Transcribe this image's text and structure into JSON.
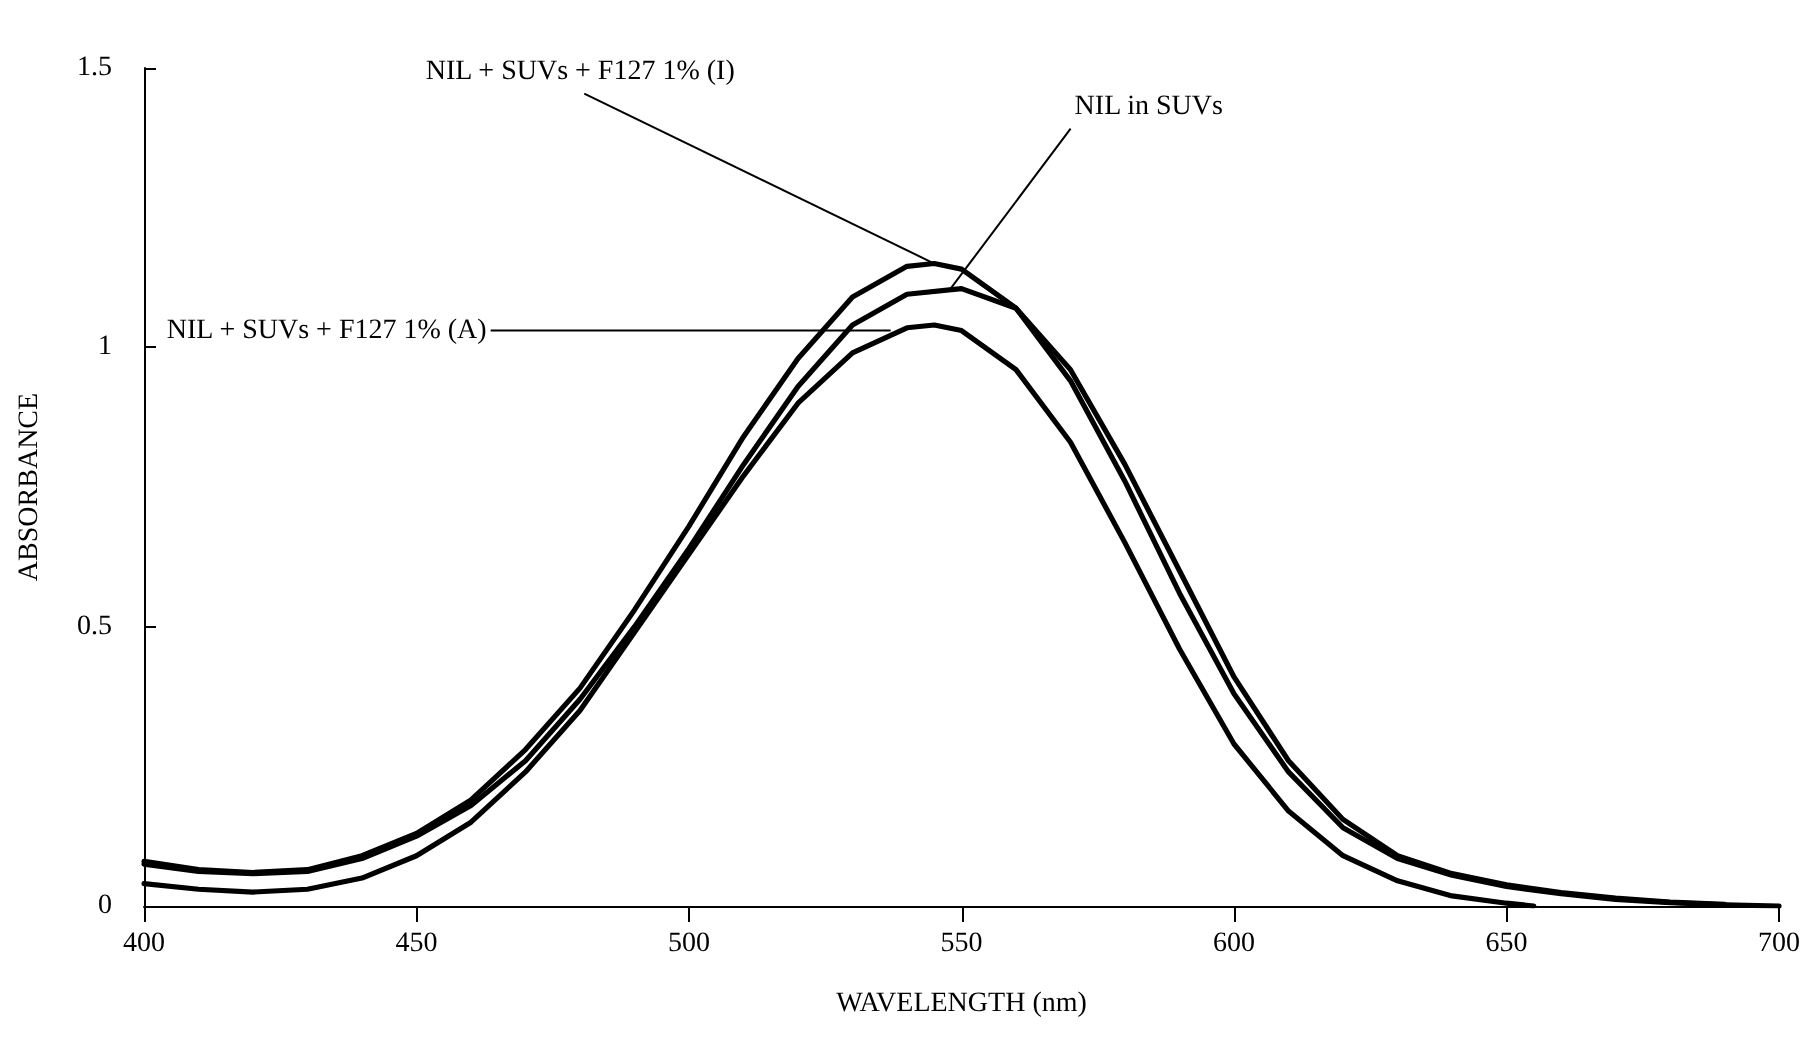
{
  "chart_data": {
    "type": "line",
    "xlabel": "WAVELENGTH (nm)",
    "ylabel": "ABSORBANCE",
    "xlim": [
      400,
      700
    ],
    "xticks": [
      400,
      450,
      500,
      550,
      600,
      650,
      700
    ],
    "ylim": [
      0,
      1.5
    ],
    "yticks": [
      0,
      0.5,
      1,
      1.5
    ],
    "grid": false,
    "marker": "none",
    "line_style": "solid",
    "series": [
      {
        "color": "#000000",
        "x": [
          400,
          410,
          420,
          430,
          440,
          450,
          460,
          470,
          480,
          490,
          500,
          510,
          520,
          530,
          540,
          545,
          550,
          560,
          570,
          580,
          590,
          600,
          610,
          620,
          630,
          640,
          650,
          660,
          670,
          680,
          690,
          700
        ],
        "values": [
          0.08,
          0.065,
          0.06,
          0.065,
          0.09,
          0.13,
          0.19,
          0.28,
          0.39,
          0.53,
          0.68,
          0.84,
          0.98,
          1.09,
          1.145,
          1.15,
          1.14,
          1.07,
          0.94,
          0.76,
          0.56,
          0.38,
          0.24,
          0.14,
          0.085,
          0.055,
          0.035,
          0.022,
          0.012,
          0.006,
          0.002,
          0
        ]
      },
      {
        "color": "#000000",
        "x": [
          400,
          410,
          420,
          430,
          440,
          450,
          460,
          470,
          480,
          490,
          500,
          510,
          520,
          530,
          540,
          550,
          560,
          570,
          580,
          590,
          600,
          610,
          620,
          630,
          640,
          650,
          660,
          670,
          680,
          690
        ],
        "values": [
          0.075,
          0.062,
          0.058,
          0.062,
          0.085,
          0.125,
          0.18,
          0.26,
          0.37,
          0.5,
          0.64,
          0.79,
          0.93,
          1.04,
          1.095,
          1.105,
          1.07,
          0.96,
          0.79,
          0.6,
          0.41,
          0.26,
          0.155,
          0.09,
          0.058,
          0.038,
          0.024,
          0.014,
          0.007,
          0.003
        ]
      },
      {
        "color": "#000000",
        "x": [
          400,
          410,
          420,
          430,
          440,
          450,
          460,
          470,
          480,
          490,
          500,
          510,
          520,
          530,
          540,
          545,
          550,
          560,
          570,
          580,
          590,
          600,
          610,
          620,
          630,
          640,
          650,
          655
        ],
        "values": [
          0.04,
          0.03,
          0.025,
          0.03,
          0.05,
          0.09,
          0.15,
          0.24,
          0.35,
          0.49,
          0.63,
          0.77,
          0.9,
          0.99,
          1.035,
          1.04,
          1.03,
          0.96,
          0.83,
          0.65,
          0.46,
          0.29,
          0.17,
          0.09,
          0.045,
          0.018,
          0.005,
          0
        ]
      }
    ],
    "annotations": [
      {
        "text": "NIL + SUVs + F127 1% (I)",
        "x": 545,
        "y": 1.15
      },
      {
        "text": "NIL in SUVs",
        "x": 548,
        "y": 1.105
      },
      {
        "text": "NIL + SUVs + F127 1% (A)",
        "x": 537,
        "y": 1.03
      }
    ]
  }
}
